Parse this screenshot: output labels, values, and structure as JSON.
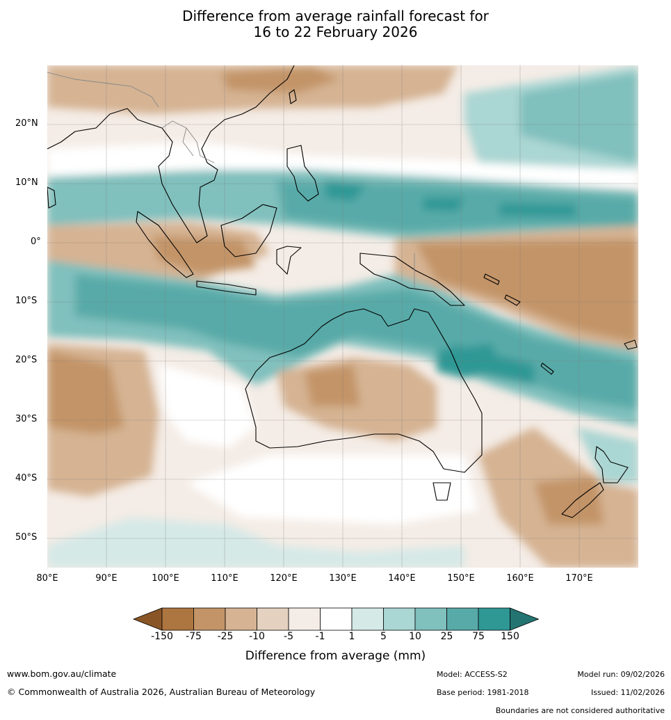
{
  "title": {
    "line1": "Difference from average rainfall forecast for",
    "line2": "16 to 22 February 2026"
  },
  "map": {
    "lat_labels": [
      "20°N",
      "10°N",
      "0°",
      "10°S",
      "20°S",
      "30°S",
      "40°S",
      "50°S"
    ],
    "lon_labels": [
      "80°E",
      "90°E",
      "100°E",
      "110°E",
      "120°E",
      "130°E",
      "140°E",
      "150°E",
      "160°E",
      "170°E"
    ]
  },
  "colorbar": {
    "ticks": [
      "-150",
      "-75",
      "-25",
      "-10",
      "-5",
      "-1",
      "1",
      "5",
      "10",
      "25",
      "75",
      "150"
    ],
    "colors": [
      "#8a5526",
      "#ad7640",
      "#c39467",
      "#d5b393",
      "#e4d1bf",
      "#f4ece6",
      "#ffffff",
      "#d5e9e7",
      "#aad6d3",
      "#80c0bd",
      "#58aaa8",
      "#2f9895",
      "#247471"
    ],
    "label": "Difference from average (mm)"
  },
  "footer": {
    "website": "www.bom.gov.au/climate",
    "copyright": "© Commonwealth of Australia 2026, Australian Bureau of Meteorology",
    "model": "Model: ACCESS-S2",
    "base_period": "Base period: 1981-2018",
    "model_run": "Model run: 09/02/2026",
    "issued": "Issued: 11/02/2026",
    "boundaries_note": "Boundaries are not considered authoritative"
  }
}
